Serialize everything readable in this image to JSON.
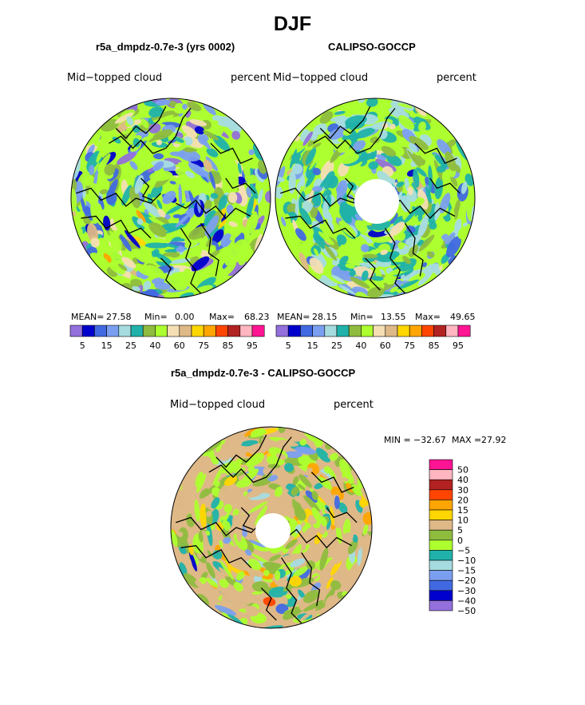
{
  "page": {
    "season": "DJF",
    "panel1_title": "r5a_dmpdz-0.7e-3 (yrs 0002)",
    "panel2_title": "CALIPSO-GOCCP",
    "panel3_title": "r5a_dmpdz-0.7e-3 - CALIPSO-GOCCP"
  },
  "chart_data": [
    {
      "type": "heatmap",
      "projection": "north-polar-stereographic",
      "title": "r5a_dmpdz-0.7e-3 (yrs 0002)",
      "variable": "Mid−topped cloud",
      "units": "percent",
      "stats": {
        "mean_label": "MEAN=",
        "mean": "27.58",
        "min_label": "Min=",
        "min": "0.00",
        "max_label": "Max=",
        "max": "68.23"
      },
      "colorbar": {
        "orientation": "horizontal",
        "colors": [
          "#9370db",
          "#0000cd",
          "#4169e1",
          "#7b9ff0",
          "#a6dce0",
          "#20b2aa",
          "#8fbc3f",
          "#adff2f",
          "#f5deb3",
          "#deb887",
          "#ffd700",
          "#ffa500",
          "#ff4500",
          "#b22222",
          "#ffb6c1",
          "#ff1493"
        ],
        "tick_labels": [
          "5",
          "15",
          "25",
          "40",
          "60",
          "75",
          "85",
          "95"
        ]
      }
    },
    {
      "type": "heatmap",
      "projection": "north-polar-stereographic",
      "title": "CALIPSO-GOCCP",
      "variable": "Mid−topped cloud",
      "units": "percent",
      "stats": {
        "mean_label": "MEAN=",
        "mean": "28.15",
        "min_label": "Min=",
        "min": "13.55",
        "max_label": "Max=",
        "max": "49.65"
      },
      "colorbar": {
        "orientation": "horizontal",
        "colors": [
          "#9370db",
          "#0000cd",
          "#4169e1",
          "#7b9ff0",
          "#a6dce0",
          "#20b2aa",
          "#8fbc3f",
          "#adff2f",
          "#f5deb3",
          "#deb887",
          "#ffd700",
          "#ffa500",
          "#ff4500",
          "#b22222",
          "#ffb6c1",
          "#ff1493"
        ],
        "tick_labels": [
          "5",
          "15",
          "25",
          "40",
          "60",
          "75",
          "85",
          "95"
        ]
      }
    },
    {
      "type": "heatmap",
      "projection": "north-polar-stereographic",
      "title": "r5a_dmpdz-0.7e-3 - CALIPSO-GOCCP",
      "variable": "Mid−topped cloud",
      "units": "percent",
      "minmax": {
        "min_label": "MIN =",
        "min": "−32.67",
        "max_label": "MAX =",
        "max": "27.92"
      },
      "colorbar": {
        "orientation": "vertical",
        "colors": [
          "#ff1493",
          "#ffb6c1",
          "#b22222",
          "#ff4500",
          "#ffa500",
          "#ffd700",
          "#deb887",
          "#8fbc3f",
          "#adff2f",
          "#20b2aa",
          "#a6dce0",
          "#7b9ff0",
          "#4169e1",
          "#0000cd",
          "#9370db"
        ],
        "tick_labels": [
          "50",
          "40",
          "30",
          "20",
          "15",
          "10",
          "5",
          "0",
          "−5",
          "−10",
          "−15",
          "−20",
          "−30",
          "−40",
          "−50"
        ]
      }
    }
  ]
}
